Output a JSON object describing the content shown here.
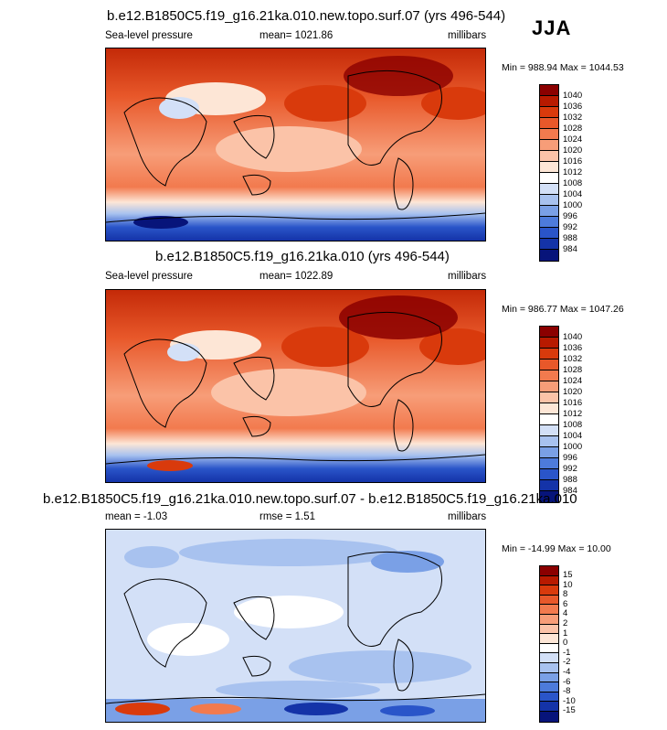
{
  "season": "JJA",
  "panels": [
    {
      "id": "p1",
      "title": "b.e12.B1850C5.f19_g16.21ka.010.new.topo.surf.07 (yrs 496-544)",
      "left_label": "Sea-level pressure",
      "center_label": "mean= 1021.86",
      "right_label": "millibars",
      "minmax": "Min = 988.94 Max = 1044.53",
      "levels": [
        "1040",
        "1036",
        "1032",
        "1028",
        "1024",
        "1020",
        "1016",
        "1012",
        "1008",
        "1004",
        "1000",
        "996",
        "992",
        "988",
        "984"
      ],
      "colors": [
        "#8b0000",
        "#b81a00",
        "#d93a0c",
        "#e8582a",
        "#f27a4e",
        "#f79d78",
        "#fbc3a8",
        "#fde6d6",
        "#ffffff",
        "#d3e0f7",
        "#a8c2ef",
        "#7aa0e6",
        "#4d7bdb",
        "#2a55c9",
        "#1433a8",
        "#07147a"
      ]
    },
    {
      "id": "p2",
      "title": "b.e12.B1850C5.f19_g16.21ka.010 (yrs 496-544)",
      "left_label": "Sea-level pressure",
      "center_label": "mean= 1022.89",
      "right_label": "millibars",
      "minmax": "Min = 986.77 Max = 1047.26",
      "levels": [
        "1040",
        "1036",
        "1032",
        "1028",
        "1024",
        "1020",
        "1016",
        "1012",
        "1008",
        "1004",
        "1000",
        "996",
        "992",
        "988",
        "984"
      ],
      "colors": [
        "#8b0000",
        "#b81a00",
        "#d93a0c",
        "#e8582a",
        "#f27a4e",
        "#f79d78",
        "#fbc3a8",
        "#fde6d6",
        "#ffffff",
        "#d3e0f7",
        "#a8c2ef",
        "#7aa0e6",
        "#4d7bdb",
        "#2a55c9",
        "#1433a8",
        "#07147a"
      ]
    },
    {
      "id": "p3",
      "title": "b.e12.B1850C5.f19_g16.21ka.010.new.topo.surf.07 - b.e12.B1850C5.f19_g16.21ka.010",
      "left_label": "mean =  -1.03",
      "center_label": "rmse =  1.51",
      "right_label": "millibars",
      "minmax": "Min = -14.99 Max = 10.00",
      "levels": [
        "15",
        "10",
        "8",
        "6",
        "4",
        "2",
        "1",
        "0",
        "-1",
        "-2",
        "-4",
        "-6",
        "-8",
        "-10",
        "-15"
      ],
      "colors": [
        "#8b0000",
        "#b81a00",
        "#d93a0c",
        "#e8582a",
        "#f27a4e",
        "#f79d78",
        "#fbc3a8",
        "#fde6d6",
        "#ffffff",
        "#d3e0f7",
        "#a8c2ef",
        "#7aa0e6",
        "#4d7bdb",
        "#2a55c9",
        "#1433a8",
        "#07147a"
      ]
    }
  ],
  "chart_data": [
    {
      "type": "heatmap",
      "title": "b.e12.B1850C5.f19_g16.21ka.010.new.topo.surf.07 (yrs 496-544)",
      "variable": "Sea-level pressure",
      "units": "millibars",
      "mean": 1021.86,
      "min": 988.94,
      "max": 1044.53,
      "contour_levels": [
        984,
        988,
        992,
        996,
        1000,
        1004,
        1008,
        1012,
        1016,
        1020,
        1024,
        1028,
        1032,
        1036,
        1040
      ]
    },
    {
      "type": "heatmap",
      "title": "b.e12.B1850C5.f19_g16.21ka.010 (yrs 496-544)",
      "variable": "Sea-level pressure",
      "units": "millibars",
      "mean": 1022.89,
      "min": 986.77,
      "max": 1047.26,
      "contour_levels": [
        984,
        988,
        992,
        996,
        1000,
        1004,
        1008,
        1012,
        1016,
        1020,
        1024,
        1028,
        1032,
        1036,
        1040
      ]
    },
    {
      "type": "heatmap",
      "title": "b.e12.B1850C5.f19_g16.21ka.010.new.topo.surf.07 - b.e12.B1850C5.f19_g16.21ka.010",
      "units": "millibars",
      "mean": -1.03,
      "rmse": 1.51,
      "min": -14.99,
      "max": 10.0,
      "contour_levels": [
        -15,
        -10,
        -8,
        -6,
        -4,
        -2,
        -1,
        0,
        1,
        2,
        4,
        6,
        8,
        10,
        15
      ]
    }
  ]
}
